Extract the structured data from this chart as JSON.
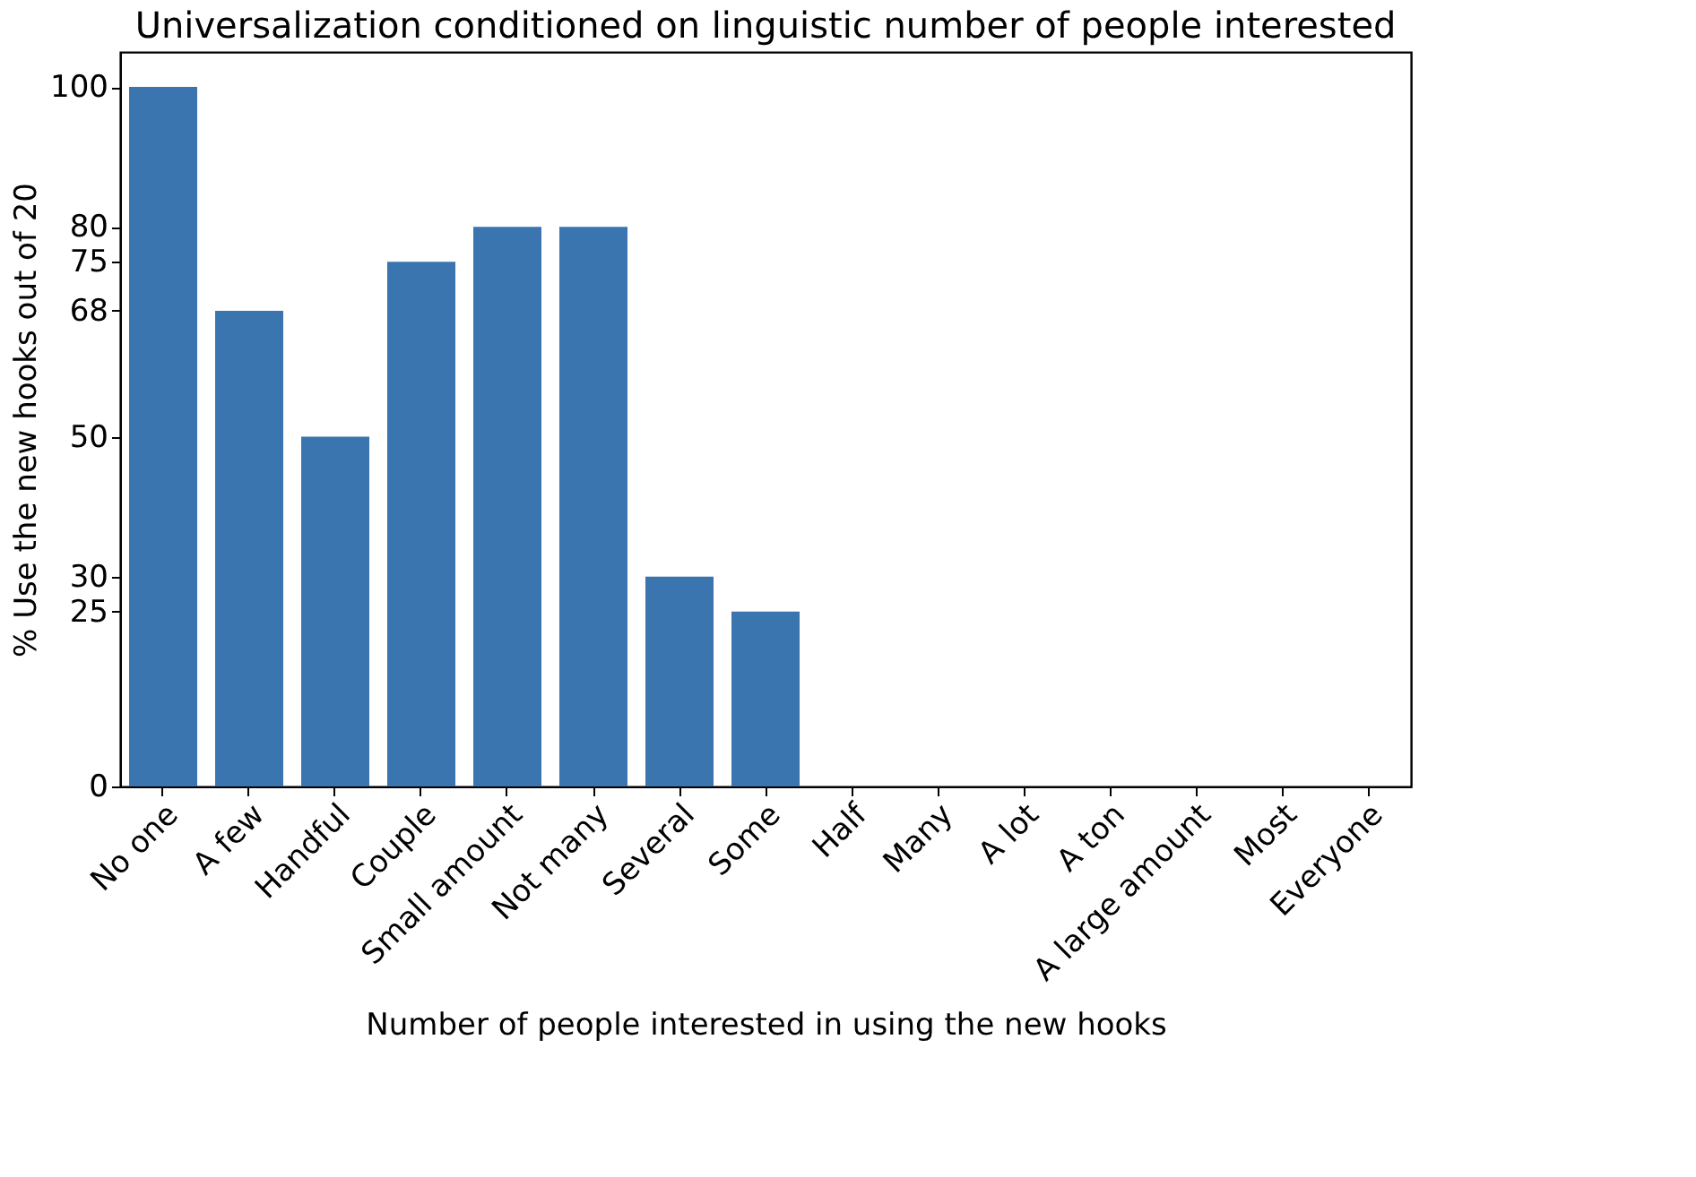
{
  "chart_data": {
    "type": "bar",
    "title": "Universalization conditioned on linguistic number of people interested",
    "xlabel": "Number of people interested in using the new hooks",
    "ylabel": "% Use the new hooks out of 20",
    "categories": [
      "No one",
      "A few",
      "Handful",
      "Couple",
      "Small amount",
      "Not many",
      "Several",
      "Some",
      "Half",
      "Many",
      "A lot",
      "A ton",
      "A large amount",
      "Most",
      "Everyone"
    ],
    "values": [
      100,
      68,
      50,
      75,
      80,
      80,
      30,
      25,
      0,
      0,
      0,
      0,
      0,
      0,
      0
    ],
    "color": "#3a75af",
    "ylim": [
      0,
      105
    ],
    "yticks": [
      0,
      25,
      30,
      50,
      68,
      75,
      80,
      100
    ],
    "grid": false
  }
}
